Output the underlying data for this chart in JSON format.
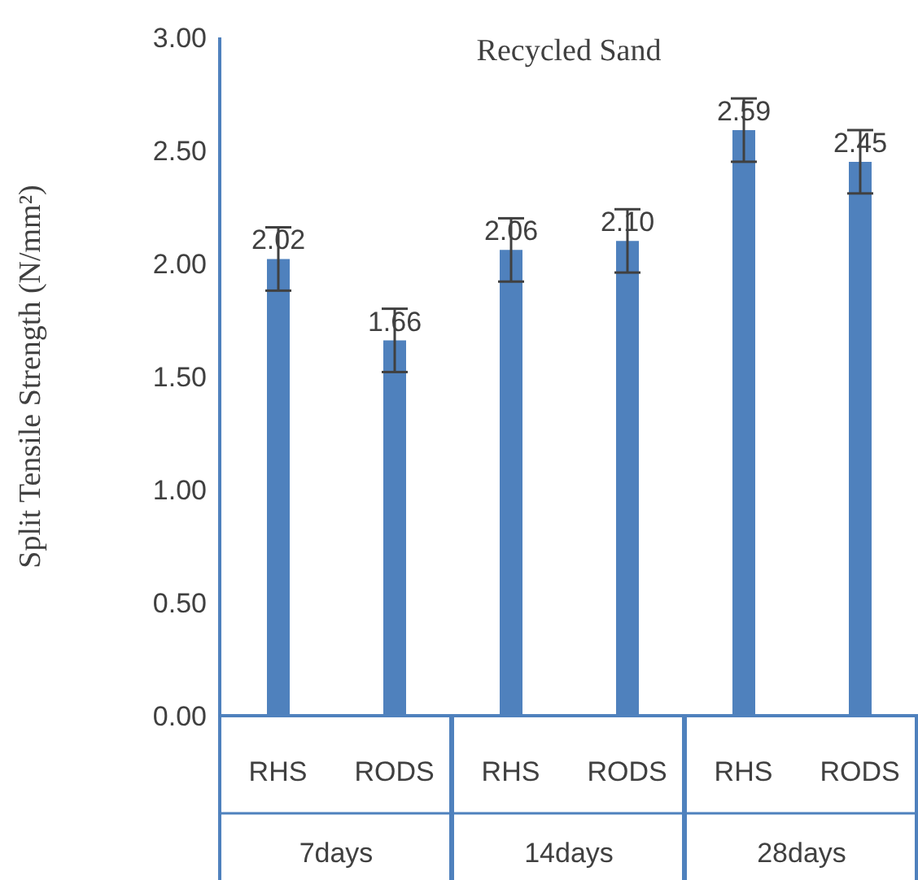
{
  "chart_data": {
    "type": "bar",
    "title": "Recycled Sand",
    "ylabel": "Split Tensile Strength (N/mm²)",
    "categories": [
      "RHS",
      "RODS",
      "RHS",
      "RODS",
      "RHS",
      "RODS"
    ],
    "values": [
      2.02,
      1.66,
      2.06,
      2.1,
      2.59,
      2.45
    ],
    "errors": [
      0.14,
      0.14,
      0.14,
      0.14,
      0.14,
      0.14
    ],
    "value_labels": [
      "2.02",
      "1.66",
      "2.06",
      "2.10",
      "2.59",
      "2.45"
    ],
    "color": "#4f81bd",
    "ylim": [
      0,
      3
    ],
    "yticks": [
      {
        "value": 0,
        "label": "0.00"
      },
      {
        "value": 0.5,
        "label": "0.50"
      },
      {
        "value": 1,
        "label": "1.00"
      },
      {
        "value": 1.5,
        "label": "1.50"
      },
      {
        "value": 2,
        "label": "2.00"
      },
      {
        "value": 2.5,
        "label": "2.50"
      },
      {
        "value": 3,
        "label": "3.00"
      }
    ],
    "annotations": [
      "7days",
      "14days",
      "28days"
    ],
    "grid": false,
    "legend": false
  }
}
